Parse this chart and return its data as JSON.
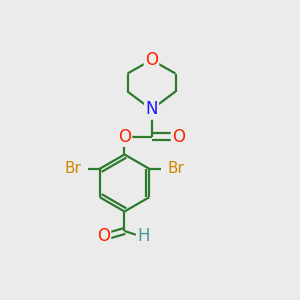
{
  "bg_color": "#ebebeb",
  "bond_color": "#2d7a2d",
  "bond_width": 1.6,
  "atom_colors": {
    "O": "#ff2200",
    "N": "#1a1aff",
    "Br": "#cc8800",
    "H": "#449999",
    "C": "#2d7a2d"
  },
  "font_size": 12,
  "font_size_br": 11,
  "font_size_h": 12
}
